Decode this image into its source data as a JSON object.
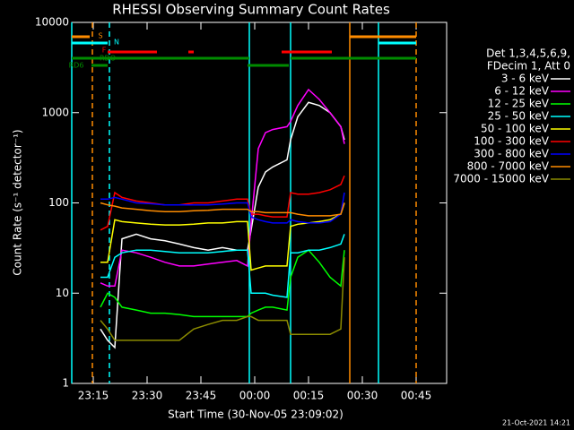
{
  "chart_data": {
    "type": "line",
    "title": "RHESSI Observing Summary Count Rates",
    "xlabel": "Start Time (30-Nov-05 23:09:02)",
    "ylabel": "Count Rate (s⁻¹ detector⁻¹)",
    "legend_header": [
      "Det 1,3,4,5,6,9,",
      "FDecim 1, Att 0"
    ],
    "timestamp": "21-Oct-2021 14:21",
    "log_y": true,
    "xlim": [
      0,
      104.5
    ],
    "ylim": [
      1,
      10000
    ],
    "xticks": [
      {
        "value": 6,
        "label": "23:15"
      },
      {
        "value": 21,
        "label": "23:30"
      },
      {
        "value": 36,
        "label": "23:45"
      },
      {
        "value": 51,
        "label": "00:00"
      },
      {
        "value": 66,
        "label": "00:15"
      },
      {
        "value": 81,
        "label": "00:30"
      },
      {
        "value": 96,
        "label": "00:45"
      }
    ],
    "yticks": [
      1,
      10,
      100,
      1000,
      10000
    ],
    "x": [
      8,
      10,
      12,
      14,
      18,
      22,
      26,
      30,
      34,
      38,
      42,
      46,
      49,
      50,
      52,
      54,
      56,
      60,
      61,
      63,
      66,
      69,
      72,
      75,
      76
    ],
    "series": [
      {
        "name": "3 - 6 keV",
        "color": "#ffffff",
        "values": [
          4,
          3,
          2.5,
          40,
          45,
          40,
          38,
          35,
          32,
          30,
          32,
          30,
          30,
          50,
          150,
          220,
          250,
          300,
          500,
          900,
          1300,
          1200,
          1000,
          700,
          500
        ]
      },
      {
        "name": "6 - 12 keV",
        "color": "#ff00ff",
        "values": [
          13,
          12,
          12,
          30,
          28,
          25,
          22,
          20,
          20,
          21,
          22,
          23,
          20,
          60,
          400,
          600,
          650,
          700,
          800,
          1200,
          1800,
          1400,
          1000,
          700,
          450
        ]
      },
      {
        "name": "12 - 25 keV",
        "color": "#00ff00",
        "values": [
          7,
          10,
          9,
          7,
          6.5,
          6,
          6,
          5.8,
          5.5,
          5.5,
          5.5,
          5.5,
          5.5,
          6,
          6.5,
          7,
          7,
          6.5,
          15,
          25,
          30,
          22,
          15,
          12,
          30
        ]
      },
      {
        "name": "25 - 50 keV",
        "color": "#00ffff",
        "values": [
          15,
          15,
          25,
          28,
          30,
          30,
          29,
          28,
          28,
          28,
          29,
          30,
          30,
          10,
          10,
          10,
          9.5,
          9,
          28,
          28,
          30,
          30,
          32,
          35,
          45
        ]
      },
      {
        "name": "50 - 100 keV",
        "color": "#ffff00",
        "values": [
          22,
          22,
          65,
          62,
          60,
          58,
          57,
          57,
          58,
          60,
          60,
          62,
          62,
          18,
          19,
          20,
          20,
          20,
          55,
          58,
          60,
          62,
          65,
          75,
          100
        ]
      },
      {
        "name": "100 - 300 keV",
        "color": "#ff0000",
        "values": [
          50,
          55,
          130,
          115,
          105,
          100,
          95,
          95,
          100,
          100,
          105,
          110,
          110,
          75,
          75,
          72,
          70,
          70,
          130,
          125,
          125,
          130,
          140,
          160,
          200
        ]
      },
      {
        "name": "300 - 800 keV",
        "color": "#0000ff",
        "values": [
          110,
          110,
          115,
          110,
          100,
          98,
          95,
          95,
          95,
          95,
          97,
          100,
          100,
          70,
          65,
          62,
          60,
          60,
          65,
          62,
          60,
          60,
          62,
          75,
          130
        ]
      },
      {
        "name": "800 - 7000 keV",
        "color": "#ff8c00",
        "values": [
          100,
          95,
          92,
          88,
          85,
          82,
          80,
          80,
          82,
          83,
          85,
          85,
          85,
          80,
          80,
          78,
          78,
          78,
          78,
          75,
          72,
          72,
          72,
          75,
          100
        ]
      },
      {
        "name": "7000 - 15000 keV",
        "color": "#8b8b00",
        "values": [
          5,
          4,
          3,
          3,
          3,
          3,
          3,
          3,
          4,
          4.5,
          5,
          5,
          5.5,
          5.5,
          5,
          5,
          5,
          5,
          3.5,
          3.5,
          3.5,
          3.5,
          3.5,
          4,
          25
        ]
      }
    ],
    "vlines": [
      {
        "x": 0,
        "color": "#00ffff",
        "dashed": false
      },
      {
        "x": 5.75,
        "color": "#ff8c00",
        "dashed": true
      },
      {
        "x": 10.5,
        "color": "#00ffff",
        "dashed": true
      },
      {
        "x": 49.5,
        "color": "#00ffff",
        "dashed": false
      },
      {
        "x": 61,
        "color": "#00ffff",
        "dashed": false
      },
      {
        "x": 77.5,
        "color": "#ff8c00",
        "dashed": false
      },
      {
        "x": 85.5,
        "color": "#00ffff",
        "dashed": false
      },
      {
        "x": 96,
        "color": "#ff8c00",
        "dashed": true
      }
    ],
    "flags": [
      {
        "label": "S",
        "color": "#ff8c00",
        "segments": [
          [
            0,
            5
          ],
          [
            77.5,
            96
          ]
        ]
      },
      {
        "label": "N",
        "color": "#00ffff",
        "segments": [
          [
            0,
            10
          ],
          [
            85.5,
            96
          ]
        ]
      },
      {
        "label": "F",
        "color": "#ff0000",
        "segments": [
          [
            10,
            23.75
          ],
          [
            32.5,
            34
          ],
          [
            58.5,
            72.5
          ]
        ]
      },
      {
        "label": "RDO",
        "color": "#008b00",
        "segments": [
          [
            0,
            49.5
          ],
          [
            61,
            96
          ]
        ]
      },
      {
        "label": "RD6",
        "color": "#008b00",
        "segments": [
          [
            5.5,
            10
          ],
          [
            49,
            60.5
          ]
        ]
      }
    ]
  }
}
